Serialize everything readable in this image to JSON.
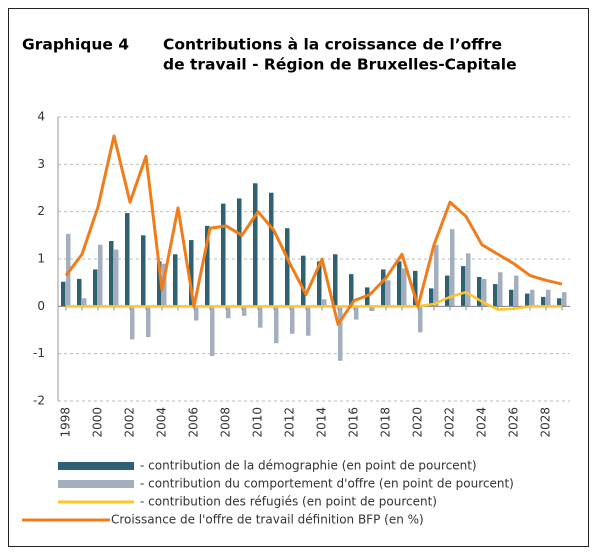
{
  "chart_data": {
    "type": "bar-line",
    "title_label": "Graphique 4",
    "title_lines": [
      "Contributions à la croissance de l’offre",
      "de travail - Région de Bruxelles-Capitale"
    ],
    "categories": [
      "1998",
      null,
      "2000",
      null,
      "2002",
      null,
      "2004",
      null,
      "2006",
      null,
      "2008",
      null,
      "2010",
      null,
      "2012",
      null,
      "2014",
      null,
      "2016",
      null,
      "2018",
      null,
      "2020",
      null,
      "2022",
      null,
      "2024",
      null,
      "2026",
      null,
      "2028",
      null
    ],
    "series": [
      {
        "name": "- contribution de la démographie (en point de pourcent)",
        "kind": "bar",
        "color": "#2e6273",
        "values": [
          0.52,
          0.58,
          0.78,
          1.38,
          1.97,
          1.5,
          0.95,
          1.1,
          1.4,
          1.7,
          2.17,
          2.28,
          2.6,
          2.4,
          1.65,
          1.07,
          0.95,
          1.1,
          0.68,
          0.4,
          0.78,
          0.95,
          0.75,
          0.38,
          0.65,
          0.85,
          0.62,
          0.47,
          0.35,
          0.27,
          0.2,
          0.17
        ]
      },
      {
        "name": "- contribution du comportement d'offre (en point de pourcent)",
        "kind": "bar",
        "color": "#a3afbf",
        "values": [
          1.53,
          0.17,
          1.3,
          1.2,
          -0.7,
          -0.65,
          0.9,
          0.0,
          -0.3,
          -1.05,
          -0.25,
          -0.2,
          -0.45,
          -0.78,
          -0.58,
          -0.62,
          0.15,
          -1.15,
          -0.28,
          -0.1,
          0.55,
          0.8,
          -0.55,
          1.3,
          1.63,
          1.12,
          0.58,
          0.72,
          0.65,
          0.35,
          0.35,
          0.3
        ]
      },
      {
        "name": "- contribution des réfugiés (en point de pourcent)",
        "kind": "line",
        "color": "#ffc629",
        "values": [
          0,
          0,
          0,
          0,
          0,
          0,
          0,
          0,
          0,
          0,
          0,
          0,
          0,
          0,
          0,
          0,
          0,
          0,
          0,
          0,
          0,
          0,
          0,
          0.05,
          0.2,
          0.3,
          0.1,
          -0.07,
          -0.05,
          0,
          0,
          0
        ]
      },
      {
        "name": "Croissance de l'offre de travail définition BFP (en %)",
        "kind": "line",
        "color": "#f07d1a",
        "values": [
          0.65,
          1.1,
          2.1,
          3.6,
          2.2,
          3.17,
          0.35,
          2.08,
          0.0,
          1.65,
          1.7,
          1.5,
          2.0,
          1.6,
          0.9,
          0.25,
          1.0,
          -0.38,
          0.12,
          0.25,
          0.6,
          1.1,
          0.0,
          1.3,
          2.2,
          1.9,
          1.3,
          1.1,
          0.9,
          0.65,
          0.55,
          0.47
        ]
      }
    ],
    "ylim": [
      -2,
      4
    ],
    "yticks": [
      -2,
      -1,
      0,
      1,
      2,
      3,
      4
    ],
    "grid": true
  }
}
